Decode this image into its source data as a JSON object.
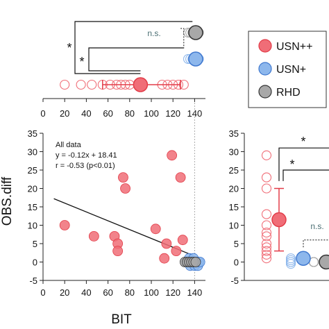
{
  "colors": {
    "usn_pp_fill": "#f06d77",
    "usn_pp_stroke": "#e23c48",
    "usn_p_fill": "#8db7ec",
    "usn_p_stroke": "#3f78cf",
    "rhd_fill": "#a8a8a8",
    "rhd_stroke": "#333333",
    "axis": "#222222",
    "regression": "#111111",
    "guide": "#999999",
    "ns_text": "#4a6e73"
  },
  "legend": {
    "placement": "right",
    "entries": [
      {
        "label": "USN++",
        "series": "usn_pp"
      },
      {
        "label": "USN+",
        "series": "usn_p"
      },
      {
        "label": "RHD",
        "series": "rhd"
      }
    ]
  },
  "labels": {
    "xlabel": "BIT",
    "ylabel": "OBS.diff",
    "annot_title": "All data",
    "annot_eq": "y = -0.12x + 18.41",
    "annot_r": "r = -0.53 (p<0.01)",
    "sig_star": "*",
    "ns": "n.s."
  },
  "chart_data": [
    {
      "type": "scatter",
      "panel": "top-strip",
      "xlabel": "",
      "xlim": [
        0,
        150
      ],
      "xticks": [
        0,
        20,
        40,
        60,
        80,
        100,
        120,
        140
      ],
      "series": [
        {
          "name": "USN++",
          "x": [
            20,
            35,
            45,
            55,
            62,
            68,
            72,
            76,
            80,
            110,
            115,
            120,
            125,
            130
          ]
        },
        {
          "name": "USN+",
          "x": [
            134,
            136,
            138,
            140,
            142,
            144
          ]
        },
        {
          "name": "RHD",
          "x": [
            134,
            136,
            138,
            140,
            142,
            144
          ]
        }
      ],
      "means": [
        {
          "name": "USN++",
          "mean": 90,
          "lo": 55,
          "hi": 127
        },
        {
          "name": "USN+",
          "mean": 141,
          "lo": 137,
          "hi": 144
        },
        {
          "name": "RHD",
          "mean": 141,
          "lo": 139,
          "hi": 144
        }
      ],
      "comparisons": [
        {
          "pair": [
            "USN++",
            "RHD"
          ],
          "label": "*"
        },
        {
          "pair": [
            "USN++",
            "USN+"
          ],
          "label": "*"
        },
        {
          "pair": [
            "USN+",
            "RHD"
          ],
          "label": "n.s."
        }
      ]
    },
    {
      "type": "scatter",
      "panel": "main",
      "xlabel": "BIT",
      "ylabel": "OBS.diff",
      "xlim": [
        0,
        150
      ],
      "ylim": [
        -5,
        35
      ],
      "xticks": [
        0,
        20,
        40,
        60,
        80,
        100,
        120,
        140
      ],
      "yticks": [
        -5,
        0,
        5,
        10,
        15,
        20,
        25,
        30,
        35
      ],
      "series": [
        {
          "name": "USN++",
          "points": [
            [
              20,
              10
            ],
            [
              47,
              7
            ],
            [
              66,
              7
            ],
            [
              69,
              5
            ],
            [
              69,
              3
            ],
            [
              74,
              23
            ],
            [
              76,
              20
            ],
            [
              104,
              9
            ],
            [
              112,
              1
            ],
            [
              114,
              5
            ],
            [
              119,
              29
            ],
            [
              123,
              3
            ],
            [
              127,
              23
            ],
            [
              129,
              6
            ]
          ]
        },
        {
          "name": "USN+",
          "points": [
            [
              133,
              0
            ],
            [
              135,
              1
            ],
            [
              136,
              -1
            ],
            [
              137,
              0
            ],
            [
              138,
              0
            ],
            [
              139,
              1
            ],
            [
              140,
              -1
            ],
            [
              141,
              0
            ],
            [
              142,
              0
            ],
            [
              143,
              -1
            ],
            [
              144,
              0
            ],
            [
              145,
              0
            ]
          ]
        },
        {
          "name": "RHD",
          "points": [
            [
              131,
              0
            ],
            [
              133,
              0
            ],
            [
              135,
              0
            ],
            [
              137,
              0
            ],
            [
              139,
              0
            ],
            [
              141,
              0
            ]
          ]
        }
      ],
      "regression": {
        "slope": -0.12,
        "intercept": 18.41,
        "x_range": [
          10,
          138
        ]
      }
    },
    {
      "type": "scatter",
      "panel": "right-strip",
      "ylim": [
        -5,
        35
      ],
      "yticks": [
        -5,
        0,
        5,
        10,
        15,
        20,
        25,
        30,
        35
      ],
      "series": [
        {
          "name": "USN++",
          "values": [
            29,
            23,
            20,
            13,
            10,
            8,
            7,
            5,
            4,
            3,
            2,
            1
          ]
        },
        {
          "name": "USN+",
          "values": [
            1,
            0.5,
            0,
            0,
            -0.5,
            0
          ]
        },
        {
          "name": "RHD",
          "values": [
            0,
            0,
            0,
            0,
            0,
            0
          ]
        }
      ],
      "means": [
        {
          "name": "USN++",
          "mean": 11.5,
          "lo": 3,
          "hi": 20
        },
        {
          "name": "USN+",
          "mean": 1,
          "lo": 0,
          "hi": 2
        },
        {
          "name": "RHD",
          "mean": 0,
          "lo": -0.5,
          "hi": 0.5
        }
      ],
      "comparisons": [
        {
          "pair": [
            "USN++",
            "RHD"
          ],
          "label": "*"
        },
        {
          "pair": [
            "USN++",
            "USN+"
          ],
          "label": "*"
        },
        {
          "pair": [
            "USN+",
            "RHD"
          ],
          "label": "n.s."
        }
      ]
    }
  ]
}
